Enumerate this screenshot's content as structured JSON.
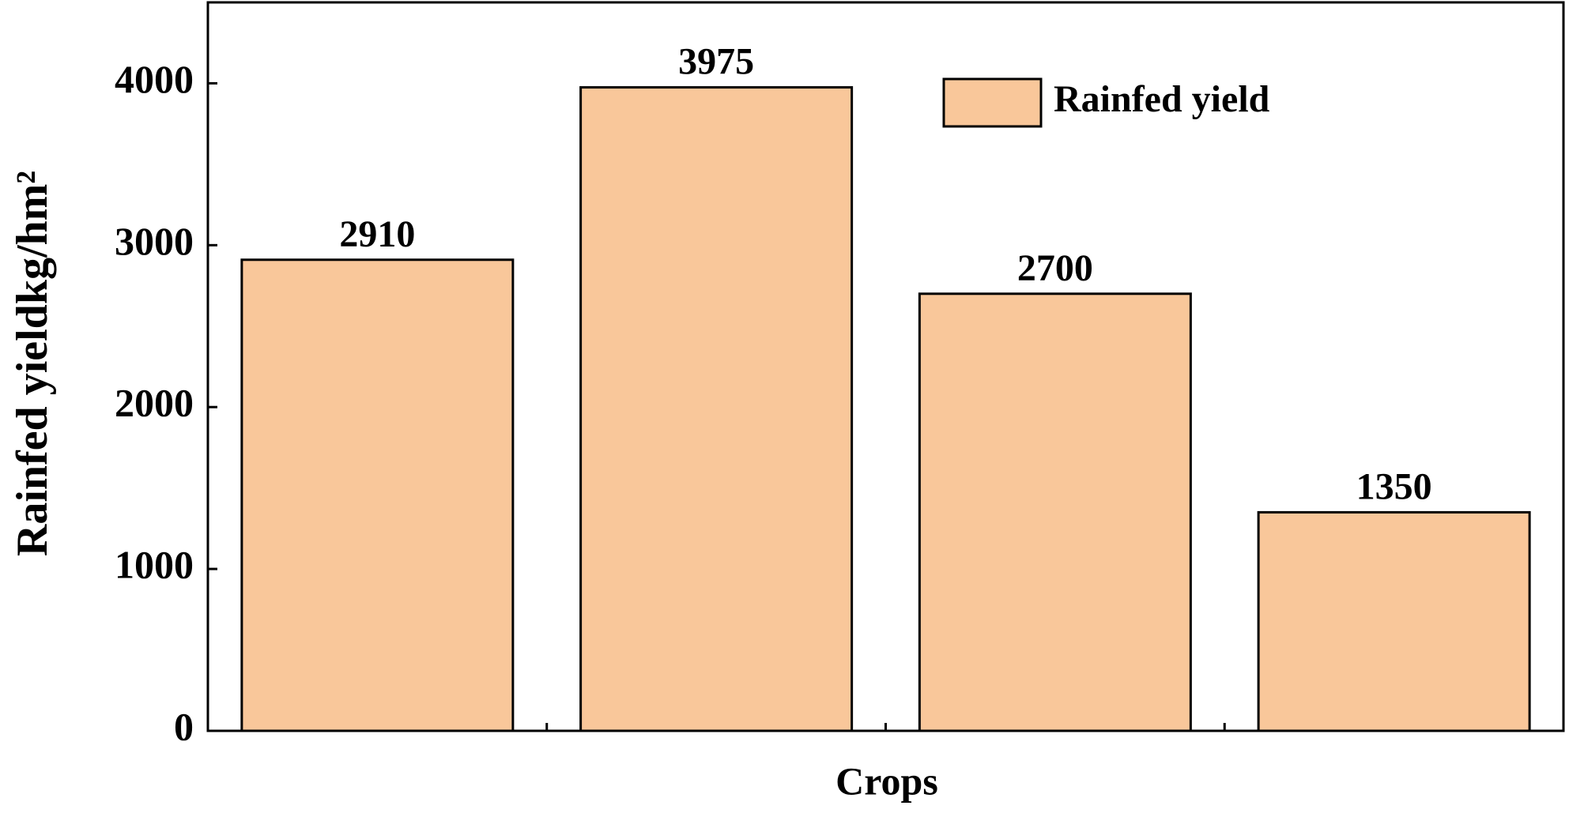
{
  "chart_data": {
    "type": "bar",
    "x_label": "Crops",
    "y_label": "Rainfed yieldkg/hm²",
    "categories": [
      null,
      null,
      null,
      null
    ],
    "series": [
      {
        "name": "Rainfed yield",
        "color": "#f9c79a",
        "values": [
          2910,
          3975,
          2700,
          1350
        ]
      }
    ],
    "ylim": [
      0,
      4500
    ],
    "yticks": [
      0,
      1000,
      2000,
      3000,
      4000
    ],
    "grid": false
  }
}
